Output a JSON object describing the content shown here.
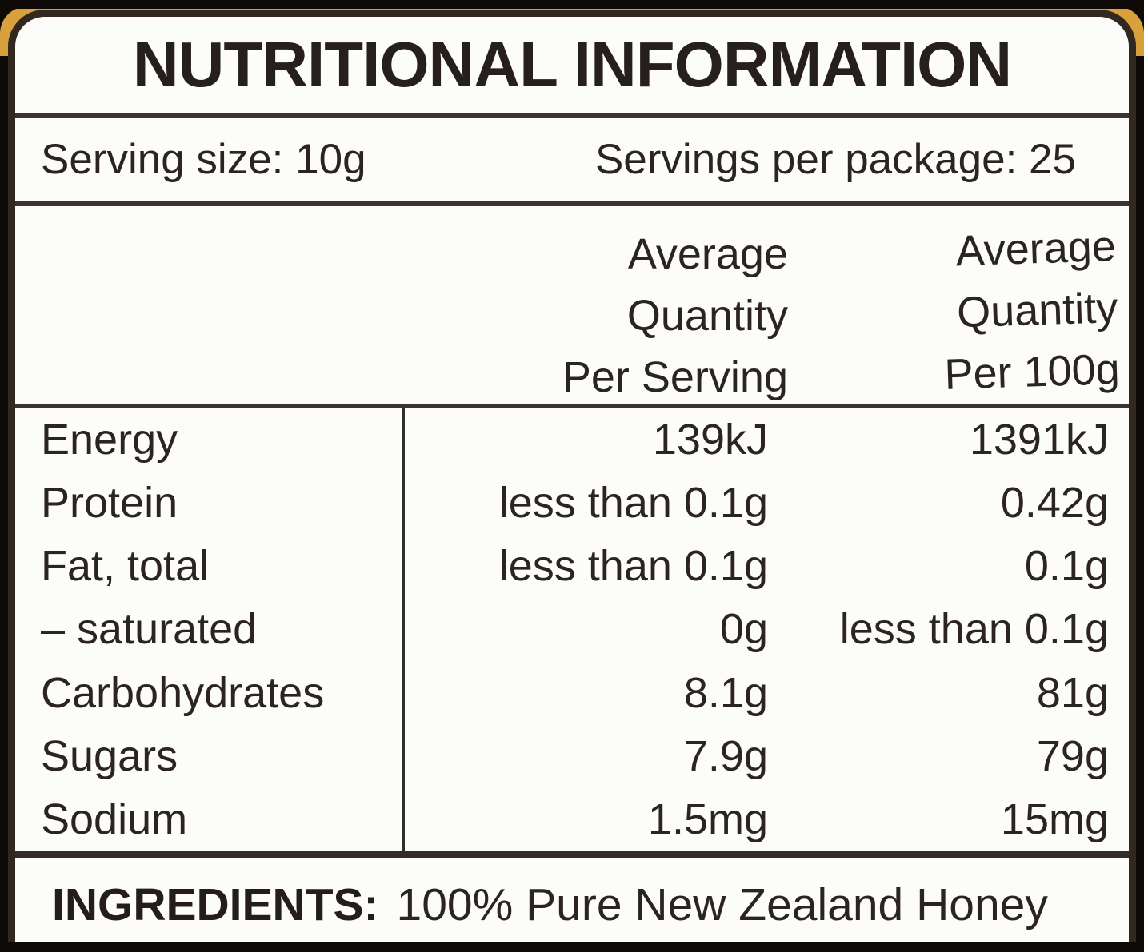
{
  "title": "NUTRITIONAL INFORMATION",
  "serving_info": {
    "serving_size": "Serving size: 10g",
    "servings_per_package": "Servings per package: 25"
  },
  "table": {
    "column_headers": {
      "per_serving": [
        "Average",
        "Quantity",
        "Per Serving"
      ],
      "per_100g": [
        "Average",
        "Quantity",
        "Per 100g"
      ]
    },
    "rows": [
      {
        "nutrient": "Energy",
        "per_serving": "139kJ",
        "per_100g": "1391kJ"
      },
      {
        "nutrient": "Protein",
        "per_serving": "less than 0.1g",
        "per_100g": "0.42g"
      },
      {
        "nutrient": "Fat, total",
        "per_serving": "less than 0.1g",
        "per_100g": "0.1g"
      },
      {
        "nutrient": "– saturated",
        "per_serving": "0g",
        "per_100g": "less than 0.1g"
      },
      {
        "nutrient": "Carbohydrates",
        "per_serving": "8.1g",
        "per_100g": "81g"
      },
      {
        "nutrient": "Sugars",
        "per_serving": "7.9g",
        "per_100g": "79g"
      },
      {
        "nutrient": "Sodium",
        "per_serving": "1.5mg",
        "per_100g": "15mg"
      }
    ]
  },
  "ingredients": {
    "label": "INGREDIENTS:",
    "value": "100% Pure New Zealand Honey"
  },
  "colors": {
    "label_ink": "#2b2421",
    "rule_line": "#3a3330",
    "paper": "#fcfcfa",
    "surround_black": "#0d0a07",
    "honey_accent": "#d8a13b"
  }
}
